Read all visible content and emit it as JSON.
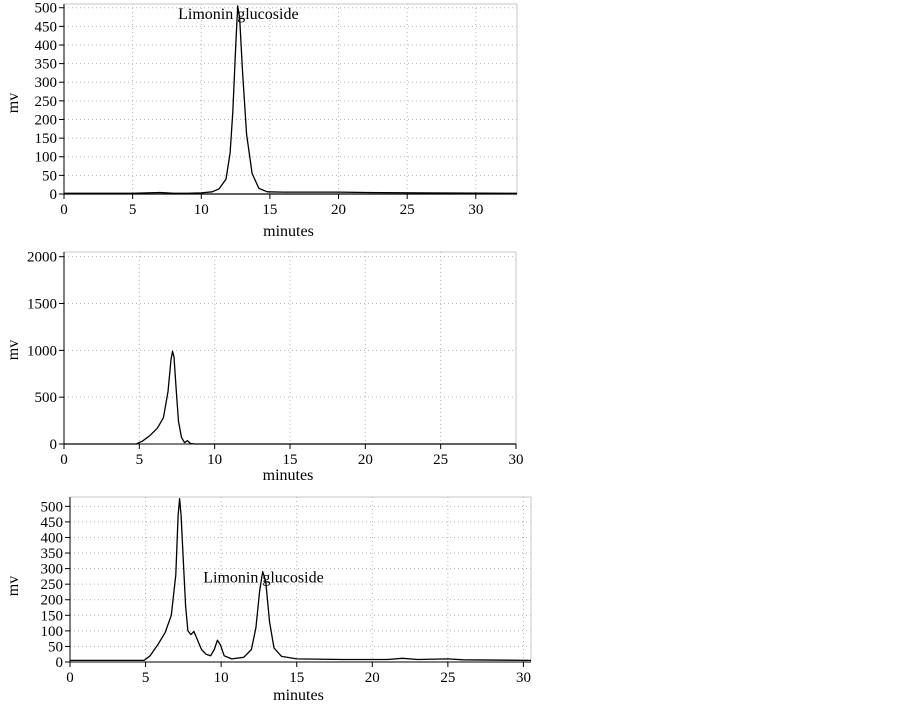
{
  "chart_data": [
    {
      "type": "line",
      "title": "",
      "xlabel": "minutes",
      "ylabel": "mv",
      "xlim": [
        0,
        33
      ],
      "ylim": [
        0,
        510
      ],
      "xticks": [
        0,
        5,
        10,
        15,
        20,
        25,
        30
      ],
      "yticks": [
        0,
        50,
        100,
        150,
        200,
        250,
        300,
        350,
        400,
        450,
        500
      ],
      "grid": true,
      "annotations": [
        {
          "text": "Limonin glucoside",
          "x": 12.7,
          "y": 470
        }
      ],
      "series": [
        {
          "color": "#000000",
          "points": [
            [
              0,
              2
            ],
            [
              5,
              2
            ],
            [
              6,
              3
            ],
            [
              7,
              4
            ],
            [
              8,
              2
            ],
            [
              9,
              2
            ],
            [
              10,
              3
            ],
            [
              10.8,
              6
            ],
            [
              11.3,
              14
            ],
            [
              11.8,
              40
            ],
            [
              12.1,
              110
            ],
            [
              12.3,
              220
            ],
            [
              12.5,
              390
            ],
            [
              12.65,
              505
            ],
            [
              12.8,
              470
            ],
            [
              13.0,
              330
            ],
            [
              13.3,
              160
            ],
            [
              13.7,
              55
            ],
            [
              14.2,
              15
            ],
            [
              14.8,
              6
            ],
            [
              16,
              5
            ],
            [
              20,
              5
            ],
            [
              22,
              4
            ],
            [
              26,
              3
            ],
            [
              33,
              2
            ]
          ]
        },
        {
          "color": "#000000",
          "points": [
            [
              0,
              0
            ],
            [
              8.5,
              0
            ],
            [
              9,
              0.5
            ],
            [
              10,
              0
            ],
            [
              33,
              0
            ]
          ]
        }
      ]
    },
    {
      "type": "line",
      "title": "",
      "xlabel": "minutes",
      "ylabel": "mv",
      "xlim": [
        0,
        30
      ],
      "ylim": [
        0,
        2050
      ],
      "xticks": [
        0,
        5,
        10,
        15,
        20,
        25,
        30
      ],
      "yticks": [
        0,
        500,
        1000,
        1500,
        2000
      ],
      "grid": true,
      "annotations": [],
      "series": [
        {
          "color": "#000000",
          "points": [
            [
              0,
              0
            ],
            [
              4.8,
              0
            ],
            [
              5.2,
              30
            ],
            [
              5.7,
              90
            ],
            [
              6.2,
              170
            ],
            [
              6.6,
              280
            ],
            [
              6.9,
              560
            ],
            [
              7.1,
              900
            ],
            [
              7.2,
              990
            ],
            [
              7.3,
              930
            ],
            [
              7.45,
              580
            ],
            [
              7.6,
              240
            ],
            [
              7.8,
              70
            ],
            [
              8.0,
              15
            ],
            [
              8.2,
              35
            ],
            [
              8.4,
              5
            ],
            [
              8.7,
              0
            ],
            [
              9,
              0
            ],
            [
              30,
              0
            ]
          ]
        }
      ]
    },
    {
      "type": "line",
      "title": "",
      "xlabel": "minutes",
      "ylabel": "mv",
      "xlim": [
        0,
        30.5
      ],
      "ylim": [
        0,
        530
      ],
      "xticks": [
        0,
        5,
        10,
        15,
        20,
        25,
        30
      ],
      "yticks": [
        0,
        50,
        100,
        150,
        200,
        250,
        300,
        350,
        400,
        450,
        500
      ],
      "grid": true,
      "annotations": [
        {
          "text": "Limonin glucoside",
          "x": 12.8,
          "y": 255
        }
      ],
      "series": [
        {
          "color": "#000000",
          "points": [
            [
              0,
              5
            ],
            [
              4.9,
              5
            ],
            [
              5.3,
              20
            ],
            [
              5.8,
              55
            ],
            [
              6.3,
              95
            ],
            [
              6.7,
              150
            ],
            [
              7.0,
              280
            ],
            [
              7.15,
              470
            ],
            [
              7.25,
              525
            ],
            [
              7.35,
              470
            ],
            [
              7.5,
              320
            ],
            [
              7.65,
              180
            ],
            [
              7.8,
              100
            ],
            [
              8.0,
              88
            ],
            [
              8.2,
              98
            ],
            [
              8.4,
              75
            ],
            [
              8.7,
              40
            ],
            [
              9.0,
              25
            ],
            [
              9.3,
              20
            ],
            [
              9.55,
              40
            ],
            [
              9.75,
              70
            ],
            [
              9.95,
              55
            ],
            [
              10.2,
              20
            ],
            [
              10.7,
              10
            ],
            [
              11.5,
              15
            ],
            [
              12.0,
              40
            ],
            [
              12.3,
              110
            ],
            [
              12.55,
              230
            ],
            [
              12.75,
              290
            ],
            [
              12.95,
              260
            ],
            [
              13.2,
              130
            ],
            [
              13.5,
              45
            ],
            [
              14.0,
              18
            ],
            [
              15,
              10
            ],
            [
              18,
              8
            ],
            [
              21,
              8
            ],
            [
              22,
              12
            ],
            [
              23,
              8
            ],
            [
              25,
              10
            ],
            [
              26,
              7
            ],
            [
              30.5,
              5
            ]
          ]
        }
      ]
    }
  ]
}
